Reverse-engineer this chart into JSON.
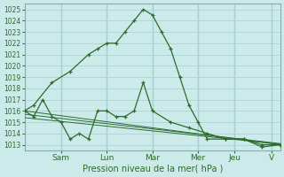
{
  "background_color": "#cceaea",
  "grid_color": "#aad4d4",
  "line_color": "#2d6b2d",
  "vline_color": "#88bbbb",
  "xlim": [
    0,
    14
  ],
  "ylim": [
    1012.5,
    1025.5
  ],
  "yticks": [
    1013,
    1014,
    1015,
    1016,
    1017,
    1018,
    1019,
    1020,
    1021,
    1022,
    1023,
    1024,
    1025
  ],
  "xtick_positions": [
    2.0,
    4.5,
    7.0,
    9.5,
    11.5,
    13.5
  ],
  "xtick_labels": [
    "Sam",
    "Lun",
    "Mar",
    "Mer",
    "Jeu",
    "V"
  ],
  "xlabel": "Pression niveau de la mer( hPa )",
  "vlines": [
    2.0,
    4.5,
    7.0,
    9.5,
    11.5,
    13.5
  ],
  "series": [
    {
      "x": [
        0,
        0.5,
        1.5,
        2.5,
        3.5,
        4.0,
        4.5,
        5.0,
        5.5,
        6.0,
        6.5,
        7.0,
        7.5,
        8.0,
        8.5,
        9.0,
        9.5,
        10.0,
        11.0,
        12.0,
        13.0,
        14.0
      ],
      "y": [
        1016.0,
        1016.5,
        1018.5,
        1019.5,
        1021.0,
        1021.5,
        1022.0,
        1022.0,
        1023.0,
        1024.0,
        1025.0,
        1024.5,
        1023.0,
        1021.5,
        1019.0,
        1016.5,
        1015.0,
        1013.5,
        1013.5,
        1013.5,
        1013.0,
        1013.0
      ]
    },
    {
      "x": [
        0,
        0.5,
        1.0,
        1.5,
        2.0,
        2.5,
        3.0,
        3.5,
        4.0,
        4.5,
        5.0,
        5.5,
        6.0,
        6.5,
        7.0,
        8.0,
        9.0,
        10.0,
        11.0,
        12.0,
        13.0,
        14.0
      ],
      "y": [
        1016.0,
        1015.5,
        1017.0,
        1015.5,
        1015.0,
        1013.5,
        1014.0,
        1013.5,
        1016.0,
        1016.0,
        1015.5,
        1015.5,
        1016.0,
        1018.5,
        1016.0,
        1015.0,
        1014.5,
        1014.0,
        1013.5,
        1013.5,
        1012.8,
        1013.0
      ]
    },
    {
      "x": [
        0,
        14
      ],
      "y": [
        1016.0,
        1013.0
      ]
    },
    {
      "x": [
        0,
        14
      ],
      "y": [
        1015.7,
        1013.1
      ]
    },
    {
      "x": [
        0,
        14
      ],
      "y": [
        1015.4,
        1013.05
      ]
    }
  ]
}
